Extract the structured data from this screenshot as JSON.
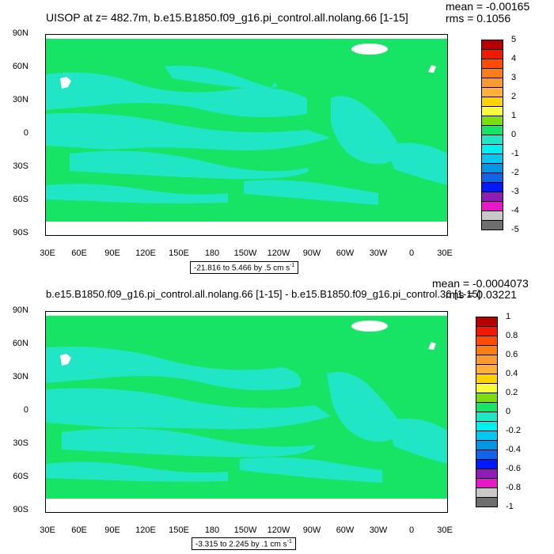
{
  "colors": {
    "ocean_green": "#17e364",
    "ocean_cyan": "#21e6c6",
    "land_mask": "#ffffff",
    "legend_top": [
      "#b40000",
      "#f01a00",
      "#ff4b00",
      "#fa7d15",
      "#fa9b32",
      "#ffaf3c",
      "#ffd200",
      "#fafa3c",
      "#7cdc0f",
      "#17e364",
      "#21e6c6",
      "#00f0f0",
      "#00c8f0",
      "#0096e1",
      "#1164e6",
      "#0019ff",
      "#8c1eb4",
      "#e619c8",
      "#c8c8c8",
      "#6e6e6e"
    ]
  },
  "panels": [
    {
      "id": "top",
      "title": "UISOP at z= 482.7m, b.e15.B1850.f09_g16.pi_control.all.nolang.66 [1-15]",
      "mean": "mean = -0.00165",
      "rms": "rms = 0.1056",
      "range_text": "-21.816 to 5.466 by .5 cm s",
      "range_unit_sup": "-1",
      "lat_labels": [
        "90N",
        "60N",
        "30N",
        "0",
        "30S",
        "60S",
        "90S"
      ],
      "lon_labels": [
        "30E",
        "60E",
        "90E",
        "120E",
        "150E",
        "180",
        "150W",
        "120W",
        "90W",
        "60W",
        "30W",
        "0",
        "30E"
      ],
      "legend_labels": [
        "5",
        "4",
        "3",
        "2",
        "1",
        "0",
        "-1",
        "-2",
        "-3",
        "-4",
        "-5"
      ]
    },
    {
      "id": "bottom",
      "title": "b.e15.B1850.f09_g16.pi_control.all.nolang.66 [1-15] - b.e15.B1850.f09_g16.pi_control.36 [1-15]",
      "mean": "mean = -0.0004073",
      "rms": "rms = 0.03221",
      "range_text": "-3.315 to 2.245 by .1 cm s",
      "range_unit_sup": "-1",
      "lat_labels": [
        "90N",
        "60N",
        "30N",
        "0",
        "30S",
        "60S",
        "90S"
      ],
      "lon_labels": [
        "30E",
        "60E",
        "90E",
        "120E",
        "150E",
        "180",
        "150W",
        "120W",
        "90W",
        "60W",
        "30W",
        "0",
        "30E"
      ],
      "legend_labels": [
        "1",
        "0.8",
        "0.6",
        "0.4",
        "0.2",
        "0",
        "-0.2",
        "-0.4",
        "-0.6",
        "-0.8",
        "-1"
      ]
    }
  ]
}
